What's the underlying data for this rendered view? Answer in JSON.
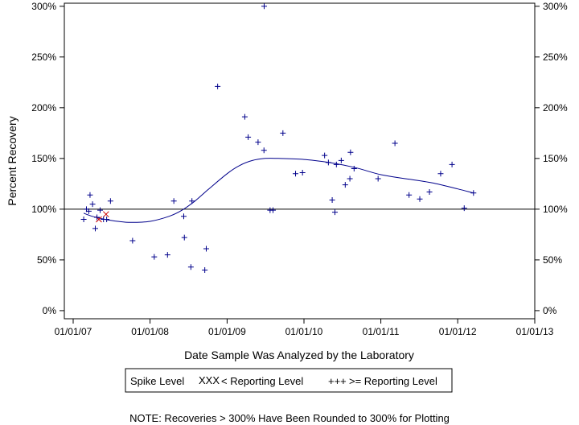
{
  "chart_data": {
    "type": "scatter",
    "xlabel": "Date Sample Was Analyzed by the Laboratory",
    "ylabel": "Percent Recovery",
    "x_ticks": [
      "01/01/07",
      "01/01/08",
      "01/01/09",
      "01/01/10",
      "01/01/11",
      "01/01/12",
      "01/01/13"
    ],
    "x_range": [
      "2006-11-20",
      "2013-01-01"
    ],
    "y_ticks": [
      "0%",
      "50%",
      "100%",
      "150%",
      "200%",
      "250%",
      "300%"
    ],
    "ylim": [
      -8,
      303
    ],
    "reference_line_y": 100,
    "legend": {
      "title": "Spike Level",
      "entries": [
        {
          "symbol": "XXX",
          "label": "< Reporting Level",
          "color": "#cc0000"
        },
        {
          "symbol": "+++",
          "label": ">= Reporting Level",
          "color": "#00008b"
        }
      ]
    },
    "series": [
      {
        "label_ref": "< Reporting Level",
        "marker": "x",
        "color": "#cc0000",
        "points": [
          {
            "x": "2007-05-03",
            "y": 90
          },
          {
            "x": "2007-06-06",
            "y": 95
          }
        ]
      },
      {
        "label_ref": ">= Reporting Level",
        "marker": "+",
        "color": "#00008b",
        "points": [
          {
            "x": "2007-02-20",
            "y": 90
          },
          {
            "x": "2007-03-05",
            "y": 100
          },
          {
            "x": "2007-03-16",
            "y": 98
          },
          {
            "x": "2007-03-22",
            "y": 114
          },
          {
            "x": "2007-04-03",
            "y": 105
          },
          {
            "x": "2007-04-16",
            "y": 81
          },
          {
            "x": "2007-04-24",
            "y": 92
          },
          {
            "x": "2007-05-09",
            "y": 99
          },
          {
            "x": "2007-05-25",
            "y": 90
          },
          {
            "x": "2007-06-09",
            "y": 90
          },
          {
            "x": "2007-06-27",
            "y": 108
          },
          {
            "x": "2007-10-10",
            "y": 69
          },
          {
            "x": "2008-01-21",
            "y": 53
          },
          {
            "x": "2008-03-24",
            "y": 55
          },
          {
            "x": "2008-04-23",
            "y": 108
          },
          {
            "x": "2008-06-09",
            "y": 93
          },
          {
            "x": "2008-06-12",
            "y": 72
          },
          {
            "x": "2008-07-13",
            "y": 43
          },
          {
            "x": "2008-07-18",
            "y": 108
          },
          {
            "x": "2008-09-17",
            "y": 40
          },
          {
            "x": "2008-09-24",
            "y": 61
          },
          {
            "x": "2008-11-17",
            "y": 221
          },
          {
            "x": "2009-03-26",
            "y": 191
          },
          {
            "x": "2009-04-11",
            "y": 171
          },
          {
            "x": "2009-05-28",
            "y": 166
          },
          {
            "x": "2009-06-25",
            "y": 158
          },
          {
            "x": "2009-06-26",
            "y": 300
          },
          {
            "x": "2009-07-24",
            "y": 99
          },
          {
            "x": "2009-08-07",
            "y": 99
          },
          {
            "x": "2009-09-23",
            "y": 175
          },
          {
            "x": "2009-11-22",
            "y": 135
          },
          {
            "x": "2009-12-25",
            "y": 136
          },
          {
            "x": "2010-04-09",
            "y": 153
          },
          {
            "x": "2010-04-27",
            "y": 146
          },
          {
            "x": "2010-05-15",
            "y": 109
          },
          {
            "x": "2010-05-28",
            "y": 97
          },
          {
            "x": "2010-06-04",
            "y": 144
          },
          {
            "x": "2010-06-27",
            "y": 148
          },
          {
            "x": "2010-07-16",
            "y": 124
          },
          {
            "x": "2010-08-07",
            "y": 130
          },
          {
            "x": "2010-08-10",
            "y": 156
          },
          {
            "x": "2010-08-27",
            "y": 140
          },
          {
            "x": "2010-12-19",
            "y": 130
          },
          {
            "x": "2011-03-09",
            "y": 165
          },
          {
            "x": "2011-05-15",
            "y": 114
          },
          {
            "x": "2011-07-05",
            "y": 110
          },
          {
            "x": "2011-08-20",
            "y": 117
          },
          {
            "x": "2011-10-12",
            "y": 135
          },
          {
            "x": "2011-12-05",
            "y": 144
          },
          {
            "x": "2012-02-01",
            "y": 101
          },
          {
            "x": "2012-03-16",
            "y": 116
          }
        ]
      }
    ],
    "trend_line": {
      "color": "#00008b",
      "points": [
        {
          "x": "2007-02-20",
          "y": 96
        },
        {
          "x": "2007-04-01",
          "y": 93
        },
        {
          "x": "2007-06-01",
          "y": 90
        },
        {
          "x": "2007-08-01",
          "y": 88
        },
        {
          "x": "2007-10-01",
          "y": 87
        },
        {
          "x": "2008-01-01",
          "y": 88
        },
        {
          "x": "2008-04-01",
          "y": 93
        },
        {
          "x": "2008-06-01",
          "y": 99
        },
        {
          "x": "2008-08-01",
          "y": 108
        },
        {
          "x": "2008-10-01",
          "y": 119
        },
        {
          "x": "2009-01-01",
          "y": 135
        },
        {
          "x": "2009-03-01",
          "y": 143
        },
        {
          "x": "2009-05-01",
          "y": 148
        },
        {
          "x": "2009-07-01",
          "y": 150
        },
        {
          "x": "2009-09-01",
          "y": 150
        },
        {
          "x": "2010-01-01",
          "y": 149
        },
        {
          "x": "2010-05-01",
          "y": 146
        },
        {
          "x": "2010-09-01",
          "y": 141
        },
        {
          "x": "2011-01-01",
          "y": 134
        },
        {
          "x": "2011-05-01",
          "y": 130
        },
        {
          "x": "2011-09-01",
          "y": 126
        },
        {
          "x": "2012-01-01",
          "y": 120
        },
        {
          "x": "2012-03-16",
          "y": 116
        }
      ]
    },
    "note": "NOTE: Recoveries > 300% Have Been Rounded to 300% for Plotting"
  }
}
